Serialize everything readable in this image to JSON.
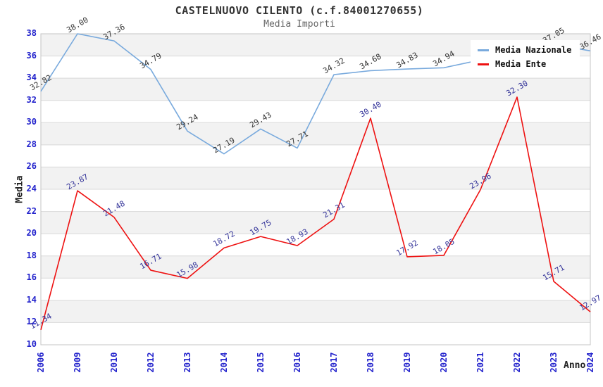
{
  "header": {
    "title": "CASTELNUOVO CILENTO (c.f.84001270655)",
    "subtitle": "Media Importi"
  },
  "legend": {
    "items": [
      {
        "label": "Media Nazionale",
        "color": "#79aadd"
      },
      {
        "label": "Media Ente",
        "color": "#ee1111"
      }
    ]
  },
  "chart_data": {
    "type": "line",
    "title": "CASTELNUOVO CILENTO (c.f.84001270655)",
    "subtitle": "Media Importi",
    "xlabel": "Anno",
    "ylabel": "Media",
    "categories": [
      "2006",
      "2009",
      "2010",
      "2012",
      "2013",
      "2014",
      "2015",
      "2016",
      "2017",
      "2018",
      "2019",
      "2020",
      "2021",
      "2022",
      "2023",
      "2024"
    ],
    "series": [
      {
        "name": "Media Nazionale",
        "color": "#79aadd",
        "label_color": "#333333",
        "values": [
          32.82,
          38.0,
          37.36,
          34.79,
          29.24,
          27.19,
          29.43,
          27.71,
          34.32,
          34.68,
          34.83,
          34.94,
          null,
          null,
          37.05,
          36.46
        ]
      },
      {
        "name": "Media Ente",
        "color": "#ee1111",
        "label_color": "#333399",
        "values": [
          11.34,
          23.87,
          21.48,
          16.71,
          15.98,
          18.72,
          19.75,
          18.93,
          21.31,
          30.4,
          17.92,
          18.05,
          23.96,
          32.3,
          15.71,
          12.97
        ]
      }
    ],
    "ylim": [
      10,
      38
    ],
    "ytick_step": 2,
    "grid": true,
    "legend_position": "top-right",
    "tick_color": "#2222cc",
    "band_color": "#f2f2f2",
    "grid_color": "#d9d9d9",
    "border_color": "#c4c4c4"
  }
}
